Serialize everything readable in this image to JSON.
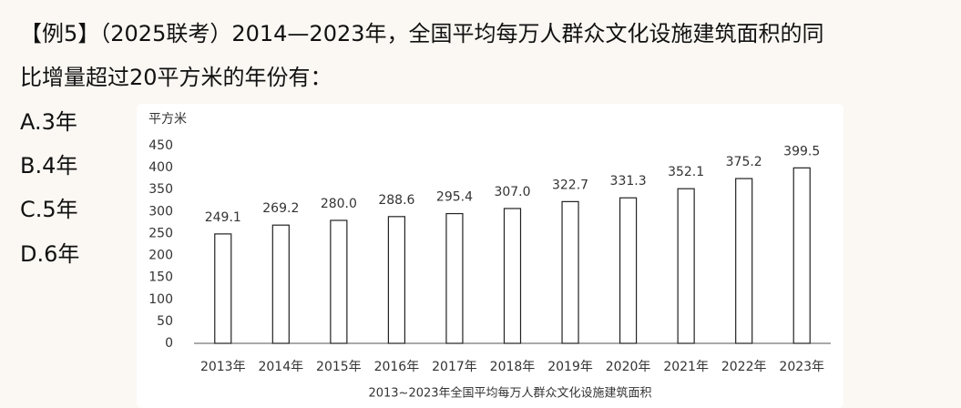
{
  "question": {
    "lines": [
      "【例5】（2025联考）2014—2023年，全国平均每万人群众文化设施建筑面积的同",
      "比增量超过20平方米的年份有："
    ]
  },
  "options": [
    "A.3年",
    "B.4年",
    "C.5年",
    "D.6年"
  ],
  "chart_data": {
    "type": "bar",
    "y_label": "平方米",
    "caption": "2013~2023年全国平均每万人群众文化设施建筑面积",
    "categories": [
      "2013年",
      "2014年",
      "2015年",
      "2016年",
      "2017年",
      "2018年",
      "2019年",
      "2020年",
      "2021年",
      "2022年",
      "2023年"
    ],
    "values": [
      249.1,
      269.2,
      280,
      288.6,
      295.4,
      307,
      322.7,
      331.3,
      352.1,
      375.2,
      399.5
    ],
    "value_labels": [
      "249.1",
      "269.2",
      "280.0",
      "288.6",
      "295.4",
      "307.0",
      "322.7",
      "331.3",
      "352.1",
      "375.2",
      "399.5"
    ],
    "color": "#ffffff",
    "ylim": [
      0,
      450
    ],
    "yticks": [
      0,
      50,
      100,
      150,
      200,
      250,
      300,
      350,
      400,
      450
    ],
    "grid": false
  }
}
